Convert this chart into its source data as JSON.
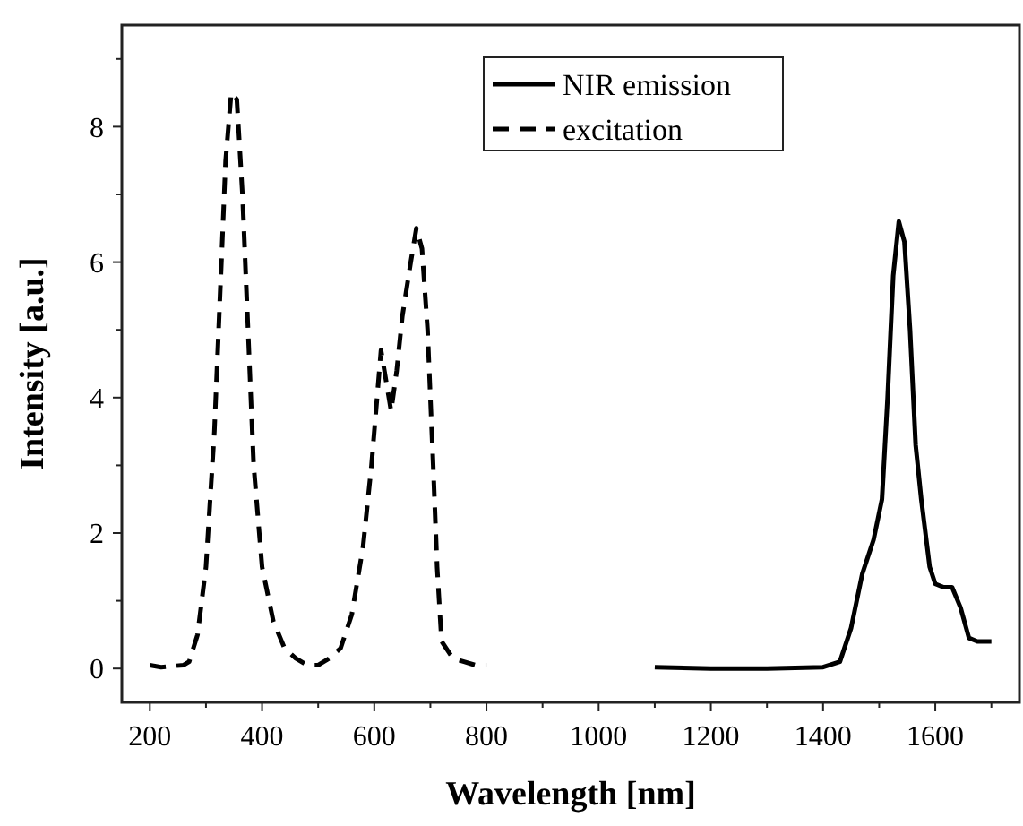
{
  "chart_data": {
    "type": "line",
    "xlabel": "Wavelength [nm]",
    "ylabel": "Intensity [a.u.]",
    "xlim": [
      150,
      1750
    ],
    "ylim": [
      -0.5,
      9.5
    ],
    "xticks": [
      200,
      {
        "value": 300,
        "label": null
      },
      400,
      {
        "value": 500,
        "label": null
      },
      600,
      {
        "value": 700,
        "label": null
      },
      800,
      {
        "value": 900,
        "label": null
      },
      1000,
      {
        "value": 1100,
        "label": null
      },
      1200,
      {
        "value": 1300,
        "label": null
      },
      1400,
      {
        "value": 1500,
        "label": null
      },
      1600,
      {
        "value": 1700,
        "label": null
      }
    ],
    "yticks": [
      0,
      {
        "value": 1,
        "label": null
      },
      2,
      {
        "value": 3,
        "label": null
      },
      4,
      {
        "value": 5,
        "label": null
      },
      6,
      {
        "value": 7,
        "label": null
      },
      8,
      {
        "value": 9,
        "label": null
      }
    ],
    "grid": false,
    "legend": "top",
    "series": [
      {
        "name": "NIR emission",
        "color": "#000000",
        "line_style": "solid",
        "x": [
          1100,
          1200,
          1300,
          1400,
          1430,
          1450,
          1470,
          1490,
          1505,
          1515,
          1525,
          1535,
          1545,
          1555,
          1565,
          1575,
          1590,
          1600,
          1615,
          1630,
          1645,
          1660,
          1675,
          1700
        ],
        "values": [
          0.02,
          0.0,
          0.0,
          0.02,
          0.1,
          0.6,
          1.4,
          1.9,
          2.5,
          4.0,
          5.8,
          6.6,
          6.3,
          5.0,
          3.3,
          2.5,
          1.5,
          1.25,
          1.2,
          1.2,
          0.9,
          0.45,
          0.4,
          0.4
        ]
      },
      {
        "name": "excitation",
        "color": "#000000",
        "line_style": "dashed",
        "x": [
          200,
          220,
          260,
          270,
          285,
          300,
          315,
          325,
          335,
          345,
          355,
          365,
          375,
          385,
          400,
          420,
          440,
          460,
          480,
          500,
          520,
          540,
          560,
          580,
          595,
          605,
          612,
          620,
          630,
          640,
          650,
          665,
          675,
          685,
          695,
          705,
          712,
          720,
          740,
          760,
          780,
          800
        ],
        "values": [
          0.05,
          0.02,
          0.05,
          0.1,
          0.5,
          1.5,
          3.5,
          5.5,
          7.5,
          8.5,
          8.4,
          7.0,
          5.0,
          3.0,
          1.5,
          0.7,
          0.3,
          0.15,
          0.05,
          0.05,
          0.15,
          0.3,
          0.8,
          1.8,
          3.0,
          4.0,
          4.7,
          4.3,
          3.8,
          4.4,
          5.2,
          6.0,
          6.5,
          6.2,
          5.0,
          3.0,
          1.5,
          0.4,
          0.15,
          0.1,
          0.05,
          0.05
        ]
      }
    ]
  }
}
